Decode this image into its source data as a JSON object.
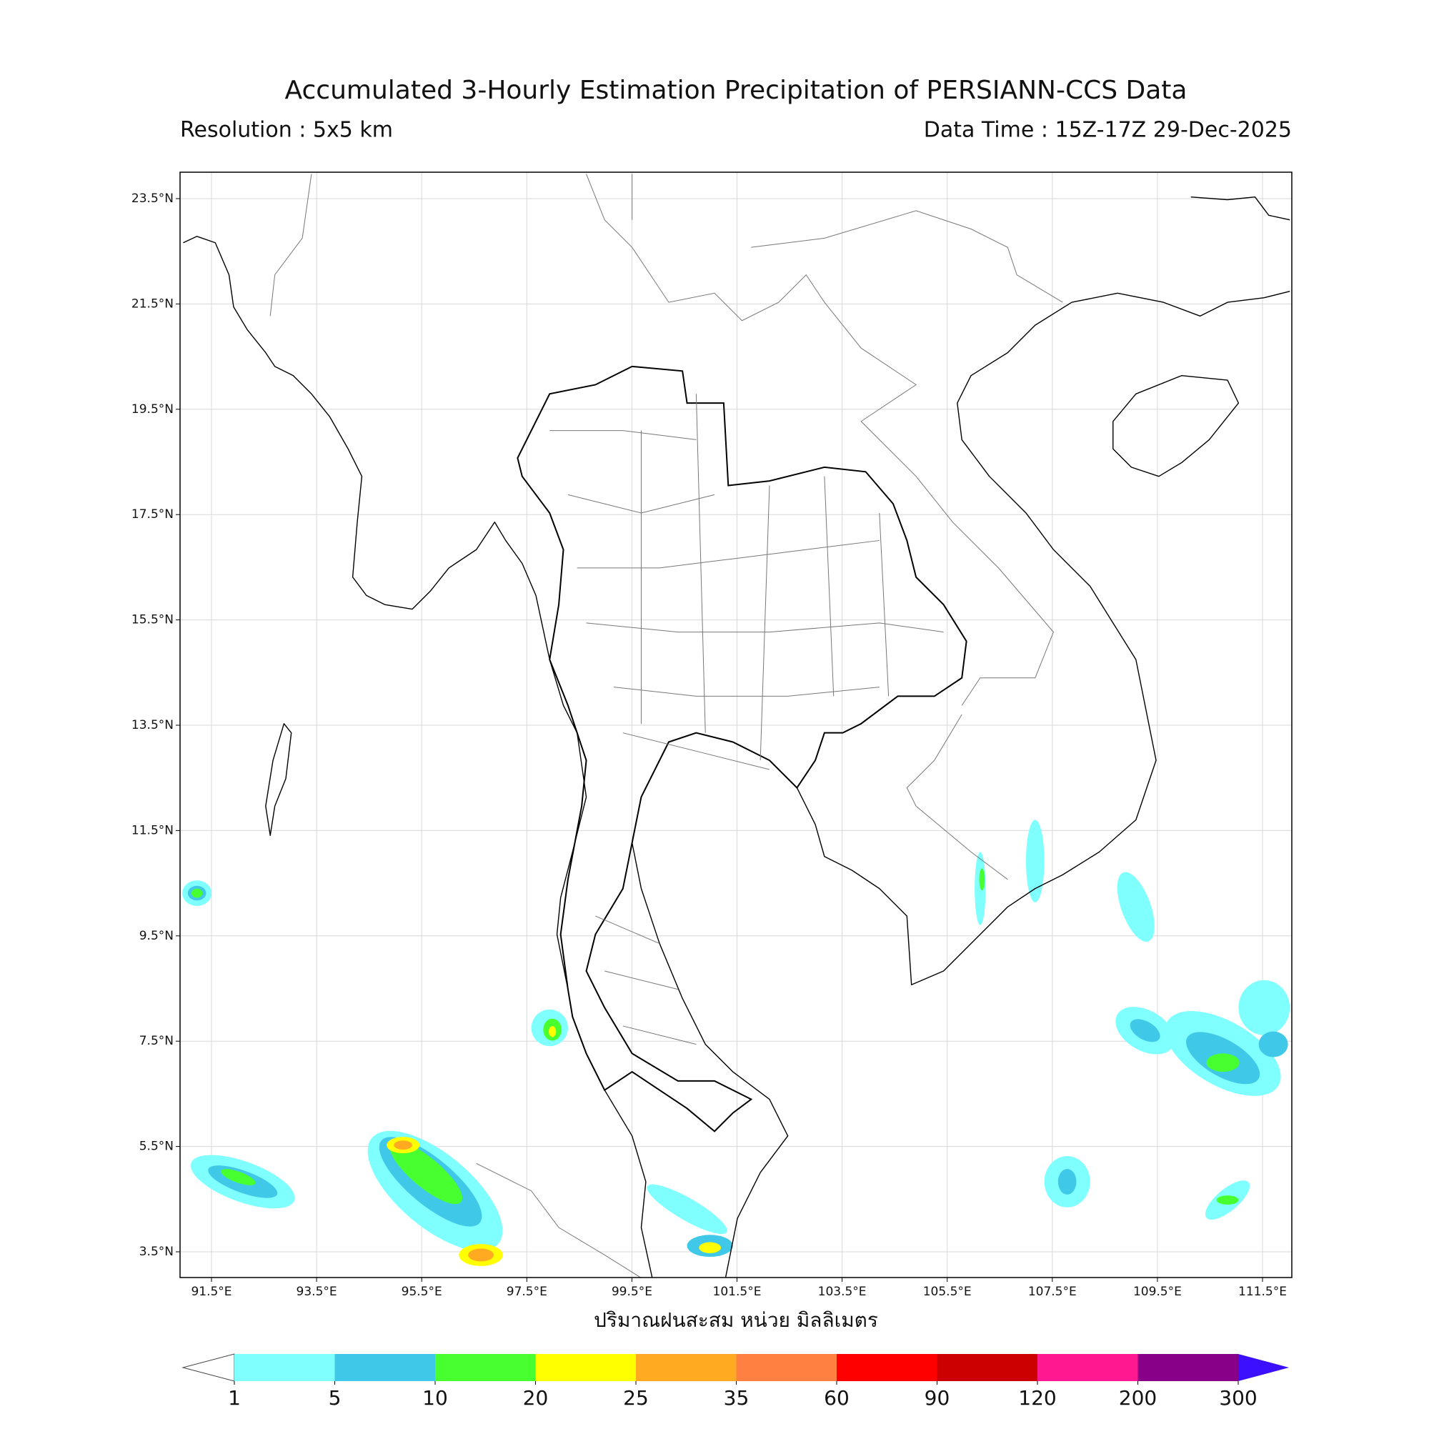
{
  "title": "Accumulated 3-Hourly Estimation Precipitation of PERSIANN-CCS Data",
  "resolution": "Resolution : 5x5 km",
  "data_time": "Data Time : 15Z-17Z 29-Dec-2025",
  "map": {
    "lat_ticks": [
      "23.5°N",
      "21.5°N",
      "19.5°N",
      "17.5°N",
      "15.5°N",
      "13.5°N",
      "11.5°N",
      "9.5°N",
      "7.5°N",
      "5.5°N",
      "3.5°N"
    ],
    "lon_ticks": [
      "91.5°E",
      "93.5°E",
      "95.5°E",
      "97.5°E",
      "99.5°E",
      "101.5°E",
      "103.5°E",
      "105.5°E",
      "107.5°E",
      "109.5°E",
      "111.5°E"
    ]
  },
  "colorbar": {
    "label": "ปริมาณฝนสะสม หน่วย มิลลิเมตร",
    "levels": [
      1,
      5,
      10,
      20,
      25,
      35,
      60,
      90,
      120,
      200,
      300
    ],
    "colors": [
      "#80ffff",
      "#40c8e8",
      "#48ff30",
      "#ffff00",
      "#ffaa20",
      "#ff8040",
      "#ff0000",
      "#cc0000",
      "#ff1890",
      "#880088"
    ],
    "under_color": "#ffffff",
    "over_color": "#3c10ff"
  }
}
